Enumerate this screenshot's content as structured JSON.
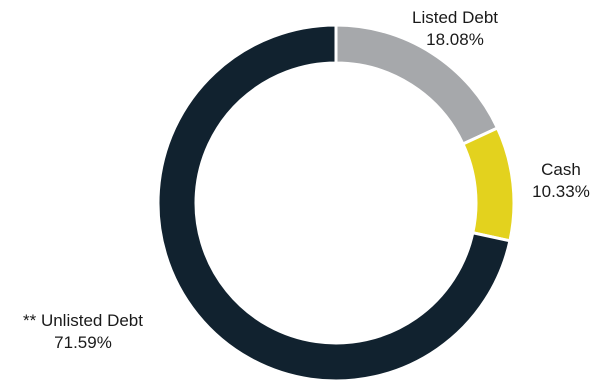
{
  "chart_data": {
    "type": "pie",
    "variant": "donut",
    "title": "",
    "slices": [
      {
        "label": "Listed Debt",
        "value_label": "18.08%",
        "value": 18.08,
        "color": "#a6a8ab"
      },
      {
        "label": "Cash",
        "value_label": "10.33%",
        "value": 10.33,
        "color": "#e3d21e"
      },
      {
        "label": "** Unlisted Debt",
        "value_label": "71.59%",
        "value": 71.59,
        "color": "#11222f"
      }
    ],
    "start_angle_deg": 0,
    "direction": "clockwise",
    "legend": "none",
    "separator_color": "#ffffff"
  }
}
